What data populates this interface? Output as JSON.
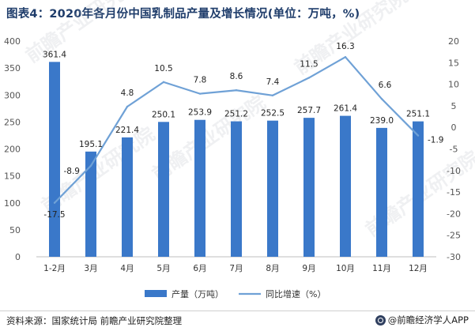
{
  "title": "图表4：2020年各月份中国乳制品产量及增长情况(单位：万吨，%)",
  "source": "资料来源：国家统计局 前瞻产业研究院整理",
  "brand": "@前瞻经济学人APP",
  "watermark": "前瞻产业研究院",
  "colors": {
    "bar": "#3a78c9",
    "line": "#6fa1d6",
    "title": "#1f3d6b"
  },
  "chart_data": {
    "type": "bar",
    "title": "2020年各月份中国乳制品产量及增长情况(单位：万吨，%)",
    "categories": [
      "1-2月",
      "3月",
      "4月",
      "5月",
      "6月",
      "7月",
      "8月",
      "9月",
      "10月",
      "11月",
      "12月"
    ],
    "series": [
      {
        "name": "产量（万吨）",
        "type": "bar",
        "axis": "left",
        "values": [
          361.4,
          195.1,
          221.4,
          250.1,
          253.9,
          251.2,
          252.5,
          257.7,
          261.4,
          239.0,
          251.1
        ],
        "labels": [
          "361.4",
          "195.1",
          "221.4",
          "250.1",
          "253.9",
          "251.2",
          "252.5",
          "257.7",
          "261.4",
          "239.0",
          "251.1"
        ]
      },
      {
        "name": "同比增速（%）",
        "type": "line",
        "axis": "right",
        "values": [
          -17.5,
          -8.9,
          4.8,
          10.5,
          7.8,
          8.6,
          7.4,
          11.5,
          16.3,
          6.6,
          -1.9
        ],
        "labels": [
          "-17.5",
          "-8.9",
          "4.8",
          "10.5",
          "7.8",
          "8.6",
          "7.4",
          "11.5",
          "16.3",
          "6.6",
          "-1.9"
        ]
      }
    ],
    "y_left": {
      "min": 0,
      "max": 400,
      "step": 50,
      "ticks": [
        "0",
        "50",
        "100",
        "150",
        "200",
        "250",
        "300",
        "350",
        "400"
      ]
    },
    "y_right": {
      "min": -30,
      "max": 20,
      "step": 5,
      "ticks": [
        "-30",
        "-25",
        "-20",
        "-15",
        "-10",
        "-5",
        "0",
        "5",
        "10",
        "15",
        "20"
      ]
    },
    "legend": {
      "position": "bottom",
      "items": [
        "产量（万吨）",
        "同比增速（%）"
      ]
    },
    "grid": false
  }
}
